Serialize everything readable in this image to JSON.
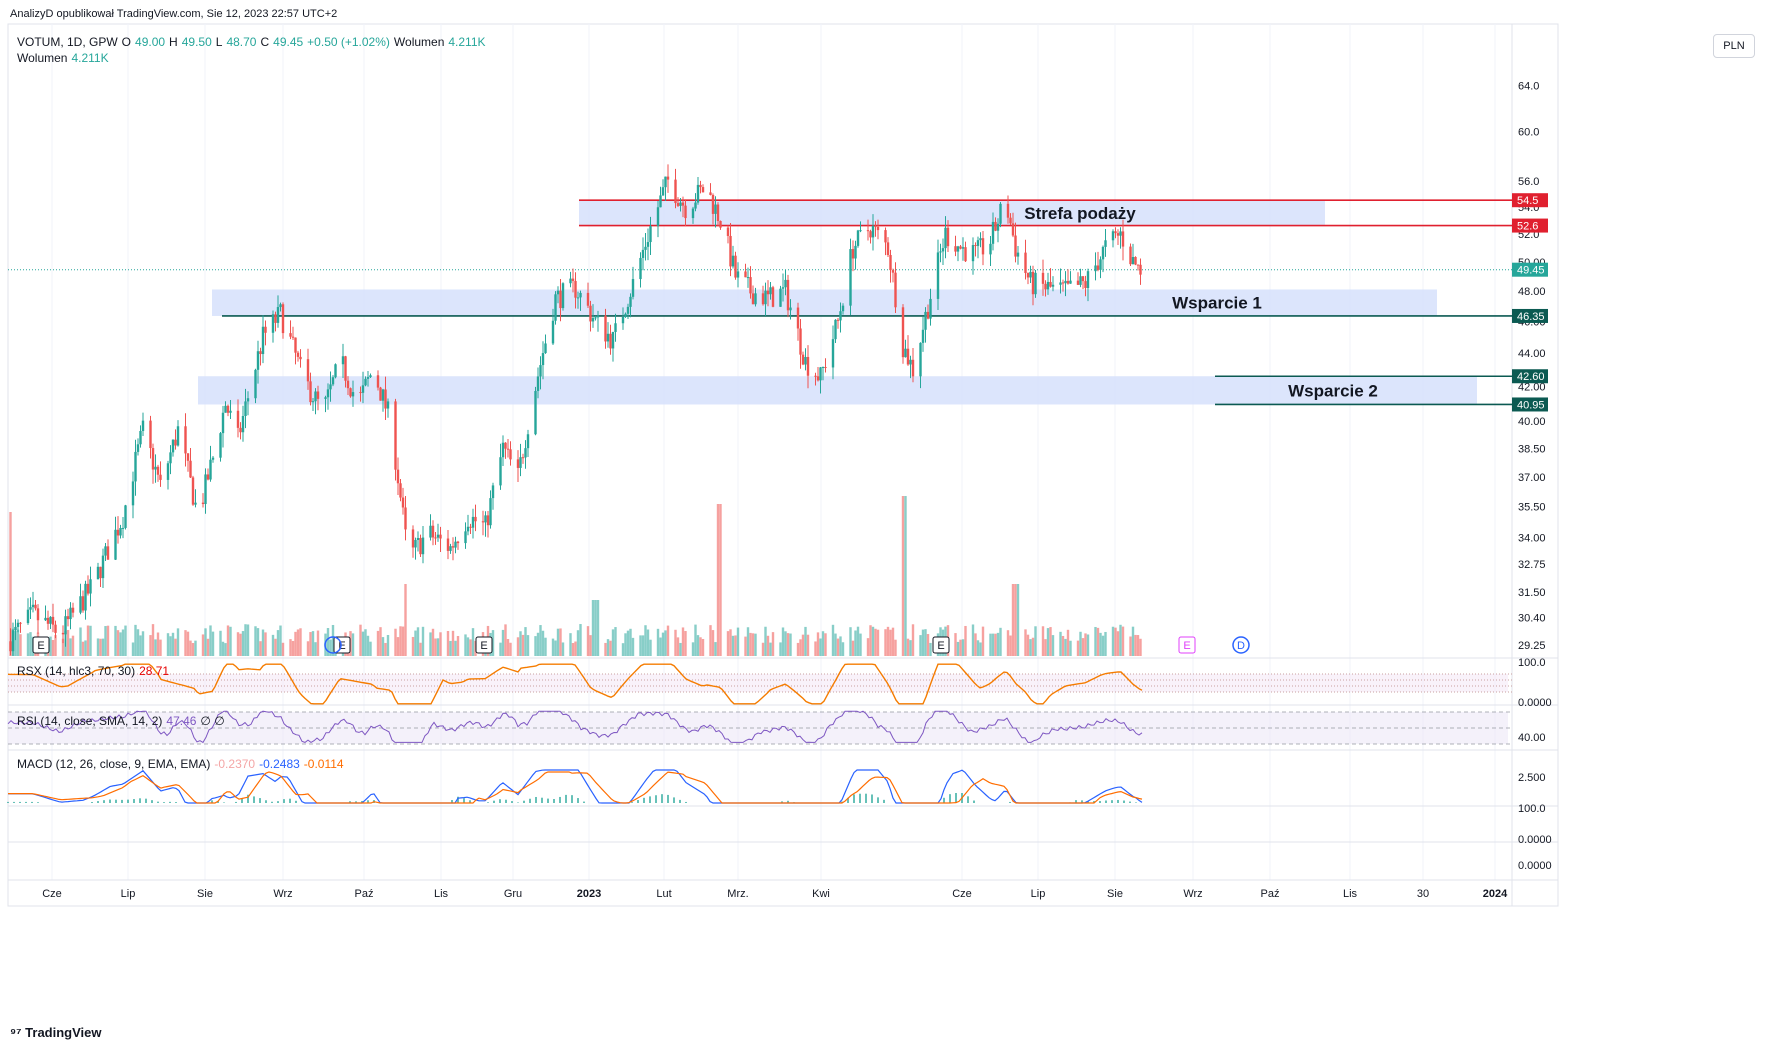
{
  "publisher_line": "AnalizyD opublikował TradingView.com, Sie 12, 2023 22:57 UTC+2",
  "symbol_line": {
    "symbol": "VOTUM, 1D, GPW",
    "open_label": "O",
    "open": "49.00",
    "high_label": "H",
    "high": "49.50",
    "low_label": "L",
    "low": "48.70",
    "close_label": "C",
    "close": "49.45",
    "change": "+0.50 (+1.02%)",
    "volume_label": "Wolumen",
    "volume": "4.211K"
  },
  "volume_line": {
    "label": "Wolumen",
    "value": "4.211K"
  },
  "currency": "PLN",
  "footer": "TradingView",
  "indicators": {
    "rsx": {
      "label": "RSX (14, hlc3, 70, 30)",
      "value": "28.71",
      "axis": [
        "100.0",
        "0.0000"
      ]
    },
    "rsi": {
      "label": "RSI (14, close, SMA, 14, 2)",
      "value": "47.46",
      "extra": "∅ ∅",
      "axis": [
        "40.00"
      ]
    },
    "macd": {
      "label": "MACD (12, 26, close, 9, EMA, EMA)",
      "hist": "-0.2370",
      "macd": "-0.2483",
      "signal": "-0.0114",
      "axis": [
        "2.500",
        "100.0",
        "0.0000",
        "0.0000"
      ]
    }
  },
  "event_markers": [
    "E",
    "E",
    "E",
    "E",
    "E",
    "D"
  ],
  "colors": {
    "up": "#26a69a",
    "down": "#ef5350",
    "zone": "#d6e0fb",
    "resistance": "#e0202f",
    "support": "#0b5a52",
    "rsx_line": "#f57c00",
    "rsx_ob": "#1fbf1f",
    "rsx_os": "#e60000",
    "rsi": "#7e57c2",
    "macd": "#2962ff",
    "signal": "#ff6d00"
  },
  "chart_data": {
    "type": "candlestick",
    "x_axis_labels": [
      "Cze",
      "Lip",
      "Sie",
      "Wrz",
      "Paź",
      "Lis",
      "Gru",
      "2023",
      "Lut",
      "Mrz.",
      "Kwi",
      "Cze",
      "Lip",
      "Sie",
      "Wrz",
      "Paź",
      "Lis",
      "30",
      "2024"
    ],
    "y_axis_labels": [
      "64.0",
      "60.0",
      "56.0",
      "54.0",
      "52.0",
      "50.00",
      "48.00",
      "46.00",
      "44.00",
      "42.00",
      "40.00",
      "38.50",
      "37.00",
      "35.50",
      "34.00",
      "32.75",
      "31.50",
      "30.40",
      "29.25"
    ],
    "y_log_scale": true,
    "ylim": [
      28.8,
      66.5
    ],
    "price_levels": [
      {
        "label": "54.5",
        "value": 54.5,
        "kind": "resistance"
      },
      {
        "label": "52.6",
        "value": 52.6,
        "kind": "resistance"
      },
      {
        "label": "49.45",
        "value": 49.45,
        "kind": "last"
      },
      {
        "label": "46.35",
        "value": 46.35,
        "kind": "support"
      },
      {
        "label": "42.60",
        "value": 42.6,
        "kind": "support"
      },
      {
        "label": "40.95",
        "value": 40.95,
        "kind": "support"
      }
    ],
    "zones": [
      {
        "name": "Strefa podaży",
        "low": 52.6,
        "high": 54.5
      },
      {
        "name": "Wsparcie 1",
        "low": 46.35,
        "high": 48.1
      },
      {
        "name": "Wsparcie 2",
        "low": 40.95,
        "high": 42.6
      }
    ],
    "price_path": [
      [
        "2022-05-15",
        29.4
      ],
      [
        "2022-05-25",
        30.5
      ],
      [
        "2022-06-05",
        29.7
      ],
      [
        "2022-06-18",
        31.8
      ],
      [
        "2022-06-30",
        35.0
      ],
      [
        "2022-07-08",
        39.5
      ],
      [
        "2022-07-15",
        36.5
      ],
      [
        "2022-07-22",
        39.5
      ],
      [
        "2022-07-30",
        35.0
      ],
      [
        "2022-08-05",
        38.0
      ],
      [
        "2022-08-10",
        41.0
      ],
      [
        "2022-08-15",
        39.0
      ],
      [
        "2022-08-25",
        45.0
      ],
      [
        "2022-09-01",
        46.5
      ],
      [
        "2022-09-10",
        42.5
      ],
      [
        "2022-09-18",
        40.5
      ],
      [
        "2022-09-25",
        43.5
      ],
      [
        "2022-10-02",
        41.0
      ],
      [
        "2022-10-08",
        43.0
      ],
      [
        "2022-10-15",
        40.0
      ],
      [
        "2022-10-22",
        33.0
      ],
      [
        "2022-10-30",
        34.2
      ],
      [
        "2022-11-08",
        33.5
      ],
      [
        "2022-11-15",
        35.0
      ],
      [
        "2022-11-22",
        34.5
      ],
      [
        "2022-11-29",
        38.5
      ],
      [
        "2022-12-05",
        37.0
      ],
      [
        "2022-12-12",
        42.0
      ],
      [
        "2022-12-20",
        47.5
      ],
      [
        "2022-12-28",
        48.2
      ],
      [
        "2023-01-05",
        46.0
      ],
      [
        "2023-01-12",
        44.8
      ],
      [
        "2023-01-20",
        48.5
      ],
      [
        "2023-01-28",
        53.0
      ],
      [
        "2023-02-03",
        56.0
      ],
      [
        "2023-02-10",
        54.0
      ],
      [
        "2023-02-18",
        55.5
      ],
      [
        "2023-02-24",
        53.0
      ],
      [
        "2023-03-02",
        49.0
      ],
      [
        "2023-03-08",
        48.0
      ],
      [
        "2023-03-15",
        47.5
      ],
      [
        "2023-03-22",
        48.0
      ],
      [
        "2023-03-30",
        43.5
      ],
      [
        "2023-04-05",
        42.5
      ],
      [
        "2023-04-12",
        46.0
      ],
      [
        "2023-04-18",
        51.0
      ],
      [
        "2023-04-25",
        52.5
      ],
      [
        "2023-05-02",
        51.0
      ],
      [
        "2023-05-08",
        44.5
      ],
      [
        "2023-05-12",
        43.0
      ],
      [
        "2023-05-18",
        47.0
      ],
      [
        "2023-05-25",
        52.0
      ],
      [
        "2023-05-31",
        51.0
      ],
      [
        "2023-06-06",
        50.5
      ],
      [
        "2023-06-12",
        51.5
      ],
      [
        "2023-06-18",
        54.5
      ],
      [
        "2023-06-22",
        51.0
      ],
      [
        "2023-06-28",
        48.5
      ],
      [
        "2023-07-05",
        48.2
      ],
      [
        "2023-07-12",
        48.0
      ],
      [
        "2023-07-20",
        48.5
      ],
      [
        "2023-07-28",
        51.0
      ],
      [
        "2023-08-03",
        52.0
      ],
      [
        "2023-08-08",
        50.0
      ],
      [
        "2023-08-11",
        49.45
      ]
    ],
    "volume_spikes": [
      [
        "2022-05-15",
        0.9
      ],
      [
        "2022-10-22",
        0.45
      ],
      [
        "2023-01-05",
        0.35
      ],
      [
        "2023-02-24",
        0.95
      ],
      [
        "2023-05-08",
        1.0
      ],
      [
        "2023-06-22",
        0.45
      ]
    ],
    "date_range": [
      "2022-05-15",
      "2024-01-05"
    ]
  }
}
